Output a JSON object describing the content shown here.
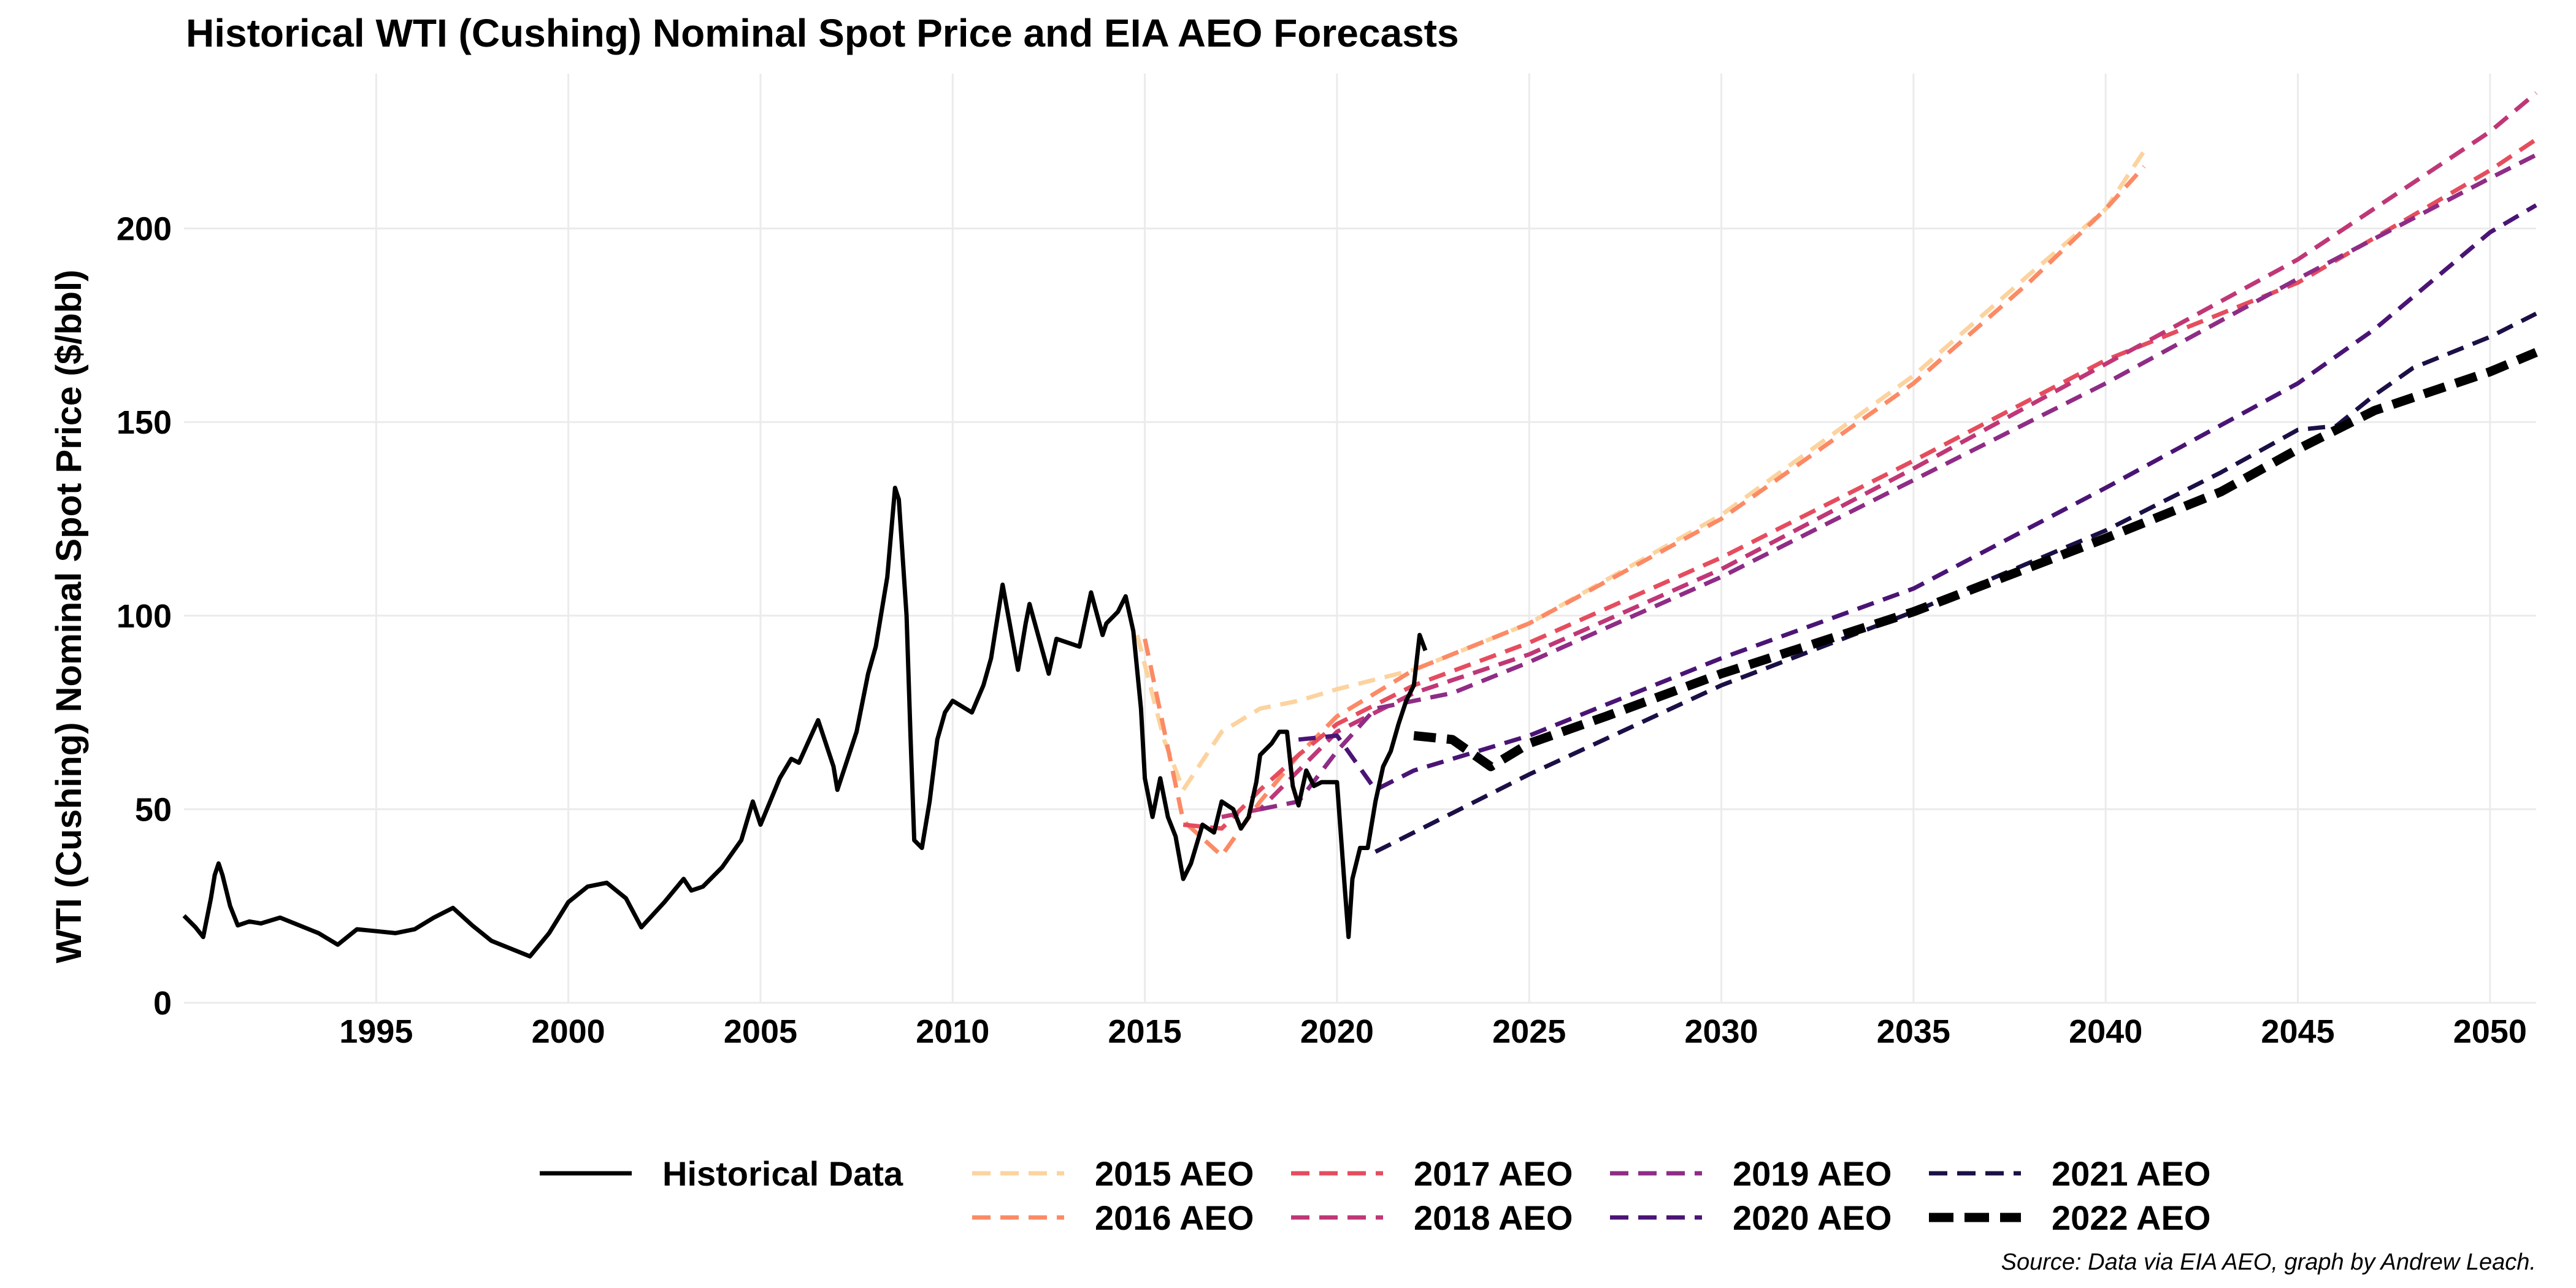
{
  "chart_data": {
    "type": "line",
    "title": "Historical WTI (Cushing) Nominal Spot Price and EIA AEO Forecasts",
    "ylabel": "WTI (Cushing) Nominal Spot Price ($/bbl)",
    "xlabel": "",
    "caption": "Source: Data via EIA AEO, graph by Andrew Leach.",
    "xlim": [
      1990.0,
      2051.2
    ],
    "ylim": [
      0,
      240
    ],
    "x_ticks": [
      "1995",
      "2000",
      "2005",
      "2010",
      "2015",
      "2020",
      "2025",
      "2030",
      "2035",
      "2040",
      "2045",
      "2050"
    ],
    "y_ticks": [
      "0",
      "50",
      "100",
      "150",
      "200"
    ],
    "grid": true,
    "legend_position": "bottom",
    "legend_labels": [
      "Historical Data",
      "2015 AEO",
      "2016 AEO",
      "2017 AEO",
      "2018 AEO",
      "2019 AEO",
      "2020 AEO",
      "2021 AEO",
      "2022 AEO"
    ],
    "series": [
      {
        "name": "Historical Data",
        "color": "#000000",
        "style": "solid",
        "points": [
          [
            1990.0,
            22.5
          ],
          [
            1990.3,
            19.5
          ],
          [
            1990.5,
            17
          ],
          [
            1990.7,
            27
          ],
          [
            1990.8,
            33
          ],
          [
            1990.9,
            36
          ],
          [
            1991.0,
            33
          ],
          [
            1991.2,
            25
          ],
          [
            1991.4,
            20
          ],
          [
            1991.7,
            21
          ],
          [
            1992.0,
            20.5
          ],
          [
            1992.5,
            22
          ],
          [
            1993.0,
            20
          ],
          [
            1993.5,
            18
          ],
          [
            1994.0,
            15
          ],
          [
            1994.5,
            19
          ],
          [
            1995.0,
            18.5
          ],
          [
            1995.5,
            18
          ],
          [
            1996.0,
            19
          ],
          [
            1996.5,
            22
          ],
          [
            1997.0,
            24.5
          ],
          [
            1997.5,
            20
          ],
          [
            1998.0,
            16
          ],
          [
            1998.5,
            14
          ],
          [
            1999.0,
            12
          ],
          [
            1999.5,
            18
          ],
          [
            2000.0,
            26
          ],
          [
            2000.5,
            30
          ],
          [
            2001.0,
            31
          ],
          [
            2001.5,
            27
          ],
          [
            2001.9,
            19.5
          ],
          [
            2002.5,
            26
          ],
          [
            2003.0,
            32
          ],
          [
            2003.2,
            29
          ],
          [
            2003.5,
            30
          ],
          [
            2004.0,
            35
          ],
          [
            2004.5,
            42
          ],
          [
            2004.8,
            52
          ],
          [
            2005.0,
            46
          ],
          [
            2005.5,
            58
          ],
          [
            2005.8,
            63
          ],
          [
            2006.0,
            62
          ],
          [
            2006.5,
            73
          ],
          [
            2006.9,
            61
          ],
          [
            2007.0,
            55
          ],
          [
            2007.5,
            70
          ],
          [
            2007.8,
            85
          ],
          [
            2008.0,
            92
          ],
          [
            2008.3,
            110
          ],
          [
            2008.5,
            133
          ],
          [
            2008.6,
            130
          ],
          [
            2008.8,
            100
          ],
          [
            2008.9,
            70
          ],
          [
            2009.0,
            42
          ],
          [
            2009.2,
            40
          ],
          [
            2009.4,
            52
          ],
          [
            2009.6,
            68
          ],
          [
            2009.8,
            75
          ],
          [
            2010.0,
            78
          ],
          [
            2010.5,
            75
          ],
          [
            2010.8,
            82
          ],
          [
            2011.0,
            89
          ],
          [
            2011.3,
            108
          ],
          [
            2011.5,
            97
          ],
          [
            2011.7,
            86
          ],
          [
            2011.9,
            98
          ],
          [
            2012.0,
            103
          ],
          [
            2012.5,
            85
          ],
          [
            2012.7,
            94
          ],
          [
            2013.0,
            93
          ],
          [
            2013.3,
            92
          ],
          [
            2013.6,
            106
          ],
          [
            2013.9,
            95
          ],
          [
            2014.0,
            98
          ],
          [
            2014.3,
            101
          ],
          [
            2014.5,
            105
          ],
          [
            2014.7,
            96
          ],
          [
            2014.9,
            76
          ],
          [
            2015.0,
            58
          ],
          [
            2015.2,
            48
          ],
          [
            2015.4,
            58
          ],
          [
            2015.6,
            48
          ],
          [
            2015.8,
            43
          ],
          [
            2016.0,
            32
          ],
          [
            2016.2,
            36
          ],
          [
            2016.5,
            46
          ],
          [
            2016.8,
            44
          ],
          [
            2017.0,
            52
          ],
          [
            2017.3,
            50
          ],
          [
            2017.5,
            45
          ],
          [
            2017.7,
            48
          ],
          [
            2017.9,
            57
          ],
          [
            2018.0,
            64
          ],
          [
            2018.3,
            67
          ],
          [
            2018.5,
            70
          ],
          [
            2018.7,
            70
          ],
          [
            2018.85,
            56
          ],
          [
            2019.0,
            51
          ],
          [
            2019.2,
            60
          ],
          [
            2019.4,
            56
          ],
          [
            2019.6,
            57
          ],
          [
            2019.8,
            57
          ],
          [
            2020.0,
            57
          ],
          [
            2020.2,
            30
          ],
          [
            2020.3,
            17
          ],
          [
            2020.4,
            32
          ],
          [
            2020.6,
            40
          ],
          [
            2020.8,
            40
          ],
          [
            2021.0,
            52
          ],
          [
            2021.2,
            61
          ],
          [
            2021.4,
            65
          ],
          [
            2021.6,
            72
          ],
          [
            2021.8,
            78
          ],
          [
            2022.0,
            82
          ],
          [
            2022.15,
            95
          ],
          [
            2022.3,
            91
          ]
        ]
      },
      {
        "name": "2015 AEO",
        "color": "#FCD39F",
        "style": "dashed",
        "points": [
          [
            2014.8,
            95
          ],
          [
            2015.5,
            68
          ],
          [
            2016.0,
            55
          ],
          [
            2017.0,
            70
          ],
          [
            2018.0,
            76
          ],
          [
            2019.0,
            78
          ],
          [
            2020.0,
            81
          ],
          [
            2022.0,
            86
          ],
          [
            2025.0,
            98
          ],
          [
            2030.0,
            126
          ],
          [
            2035.0,
            162
          ],
          [
            2038.0,
            188
          ],
          [
            2040.0,
            205
          ],
          [
            2041.0,
            220
          ]
        ]
      },
      {
        "name": "2016 AEO",
        "color": "#FB8A65",
        "style": "dashed",
        "points": [
          [
            2015.0,
            94
          ],
          [
            2016.0,
            47
          ],
          [
            2017.0,
            38
          ],
          [
            2018.0,
            52
          ],
          [
            2019.0,
            64
          ],
          [
            2020.0,
            74
          ],
          [
            2022.0,
            86
          ],
          [
            2025.0,
            98
          ],
          [
            2030.0,
            125
          ],
          [
            2035.0,
            160
          ],
          [
            2038.0,
            186
          ],
          [
            2040.0,
            205
          ],
          [
            2041.0,
            216
          ]
        ]
      },
      {
        "name": "2017 AEO",
        "color": "#E54D5F",
        "style": "dashed",
        "points": [
          [
            2016.0,
            46
          ],
          [
            2017.0,
            45
          ],
          [
            2018.0,
            55
          ],
          [
            2019.0,
            64
          ],
          [
            2020.0,
            72
          ],
          [
            2022.0,
            82
          ],
          [
            2025.0,
            93
          ],
          [
            2030.0,
            115
          ],
          [
            2035.0,
            140
          ],
          [
            2040.0,
            166
          ],
          [
            2045.0,
            186
          ],
          [
            2050.0,
            215
          ],
          [
            2051.2,
            223
          ]
        ]
      },
      {
        "name": "2018 AEO",
        "color": "#BF3777",
        "style": "dashed",
        "points": [
          [
            2017.0,
            48
          ],
          [
            2018.0,
            50
          ],
          [
            2019.0,
            60
          ],
          [
            2020.0,
            70
          ],
          [
            2022.0,
            80
          ],
          [
            2025.0,
            90
          ],
          [
            2030.0,
            112
          ],
          [
            2035.0,
            138
          ],
          [
            2040.0,
            165
          ],
          [
            2045.0,
            192
          ],
          [
            2050.0,
            225
          ],
          [
            2051.2,
            235
          ]
        ]
      },
      {
        "name": "2019 AEO",
        "color": "#8E2C86",
        "style": "dashed",
        "points": [
          [
            2018.0,
            50
          ],
          [
            2019.0,
            52
          ],
          [
            2020.0,
            65
          ],
          [
            2021.0,
            76
          ],
          [
            2023.0,
            80
          ],
          [
            2025.0,
            88
          ],
          [
            2030.0,
            110
          ],
          [
            2035.0,
            135
          ],
          [
            2040.0,
            160
          ],
          [
            2045.0,
            187
          ],
          [
            2050.0,
            213
          ],
          [
            2051.2,
            219
          ]
        ]
      },
      {
        "name": "2020 AEO",
        "color": "#4A1475",
        "style": "dashed",
        "points": [
          [
            2019.0,
            68
          ],
          [
            2020.0,
            69
          ],
          [
            2021.0,
            55
          ],
          [
            2022.0,
            60
          ],
          [
            2025.0,
            69
          ],
          [
            2030.0,
            89
          ],
          [
            2035.0,
            107
          ],
          [
            2040.0,
            133
          ],
          [
            2045.0,
            160
          ],
          [
            2047.0,
            174
          ],
          [
            2050.0,
            199
          ],
          [
            2051.2,
            206
          ]
        ]
      },
      {
        "name": "2021 AEO",
        "color": "#1C0F45",
        "style": "dashed",
        "points": [
          [
            2021.0,
            39
          ],
          [
            2022.0,
            44
          ],
          [
            2023.0,
            49
          ],
          [
            2025.0,
            59
          ],
          [
            2030.0,
            82
          ],
          [
            2035.0,
            101
          ],
          [
            2040.0,
            122
          ],
          [
            2043.0,
            137
          ],
          [
            2045.0,
            148
          ],
          [
            2046.0,
            149
          ],
          [
            2047.0,
            157
          ],
          [
            2048.0,
            164
          ],
          [
            2050.0,
            172
          ],
          [
            2051.2,
            178
          ]
        ]
      },
      {
        "name": "2022 AEO",
        "color": "#000000",
        "style": "dashed-thick",
        "points": [
          [
            2022.0,
            69
          ],
          [
            2023.0,
            68
          ],
          [
            2024.0,
            61
          ],
          [
            2025.0,
            67
          ],
          [
            2027.0,
            74
          ],
          [
            2030.0,
            85
          ],
          [
            2035.0,
            101
          ],
          [
            2040.0,
            120
          ],
          [
            2043.0,
            132
          ],
          [
            2045.0,
            143
          ],
          [
            2047.0,
            153
          ],
          [
            2050.0,
            163
          ],
          [
            2051.2,
            168
          ]
        ]
      }
    ]
  }
}
